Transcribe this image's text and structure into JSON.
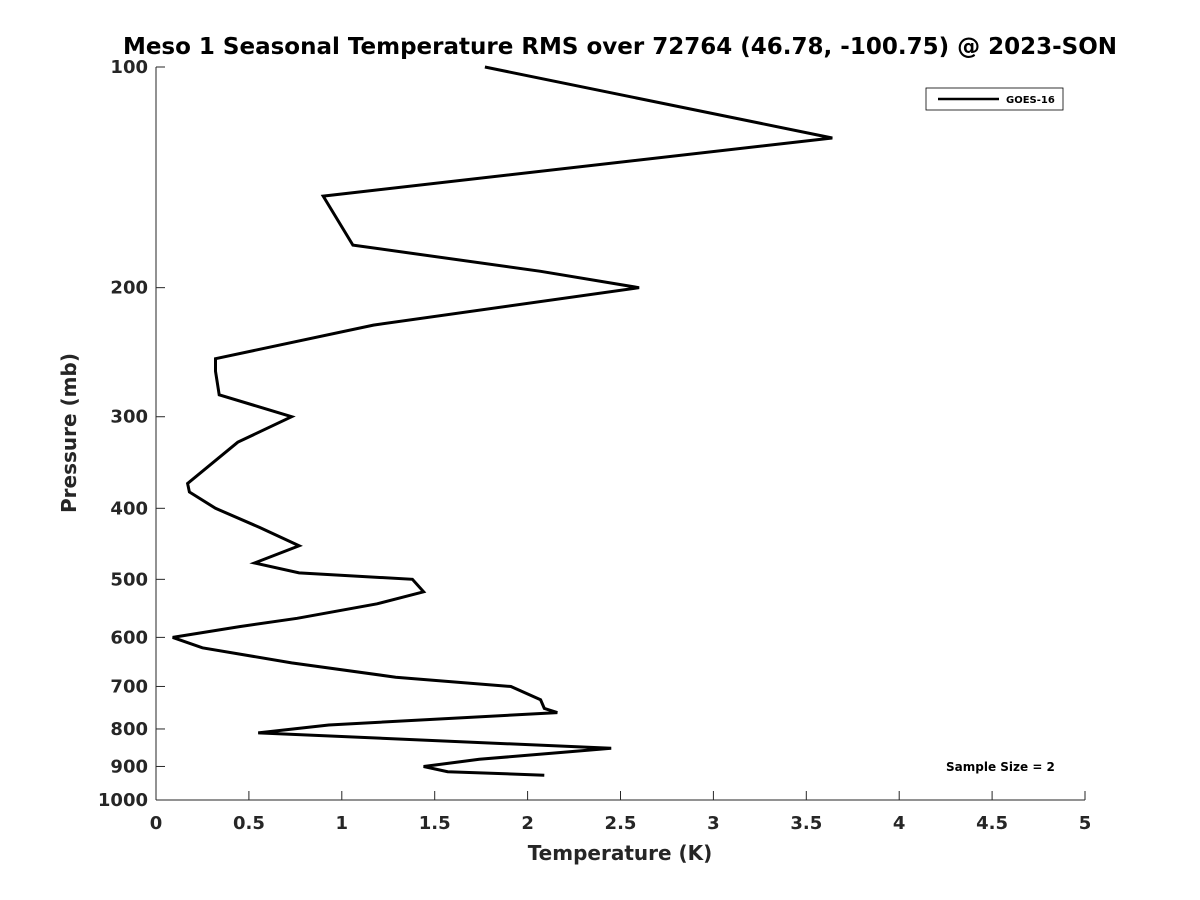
{
  "chart_data": {
    "type": "line",
    "title": "Meso 1 Seasonal Temperature RMS over 72764 (46.78, -100.75) @ 2023-SON",
    "xlabel": "Temperature (K)",
    "ylabel": "Pressure (mb)",
    "xlim": [
      0,
      5
    ],
    "ylim": [
      100,
      1000
    ],
    "y_scale": "log",
    "y_reversed": true,
    "x_ticks": [
      "0",
      "0.5",
      "1",
      "1.5",
      "2",
      "2.5",
      "3",
      "3.5",
      "4",
      "4.5",
      "5"
    ],
    "y_ticks": [
      "100",
      "200",
      "300",
      "400",
      "500",
      "600",
      "700",
      "800",
      "900",
      "1000"
    ],
    "grid": false,
    "legend_position": "top-right",
    "annotation": "Sample Size = 2",
    "series": [
      {
        "name": "GOES-16",
        "color": "#000000",
        "points": [
          {
            "x": 1.77,
            "y": 100
          },
          {
            "x": 3.64,
            "y": 125
          },
          {
            "x": 0.9,
            "y": 150
          },
          {
            "x": 1.06,
            "y": 175
          },
          {
            "x": 2.07,
            "y": 190
          },
          {
            "x": 2.6,
            "y": 200
          },
          {
            "x": 1.17,
            "y": 225
          },
          {
            "x": 0.32,
            "y": 250
          },
          {
            "x": 0.32,
            "y": 260
          },
          {
            "x": 0.34,
            "y": 280
          },
          {
            "x": 0.73,
            "y": 300
          },
          {
            "x": 0.44,
            "y": 325
          },
          {
            "x": 0.17,
            "y": 370
          },
          {
            "x": 0.18,
            "y": 380
          },
          {
            "x": 0.32,
            "y": 400
          },
          {
            "x": 0.56,
            "y": 425
          },
          {
            "x": 0.77,
            "y": 450
          },
          {
            "x": 0.53,
            "y": 475
          },
          {
            "x": 0.77,
            "y": 490
          },
          {
            "x": 1.38,
            "y": 500
          },
          {
            "x": 1.44,
            "y": 520
          },
          {
            "x": 1.19,
            "y": 540
          },
          {
            "x": 0.76,
            "y": 565
          },
          {
            "x": 0.45,
            "y": 580
          },
          {
            "x": 0.09,
            "y": 600
          },
          {
            "x": 0.25,
            "y": 620
          },
          {
            "x": 0.73,
            "y": 650
          },
          {
            "x": 1.29,
            "y": 680
          },
          {
            "x": 1.91,
            "y": 700
          },
          {
            "x": 2.07,
            "y": 730
          },
          {
            "x": 2.09,
            "y": 750
          },
          {
            "x": 2.16,
            "y": 760
          },
          {
            "x": 0.93,
            "y": 790
          },
          {
            "x": 0.55,
            "y": 810
          },
          {
            "x": 2.45,
            "y": 850
          },
          {
            "x": 2.21,
            "y": 860
          },
          {
            "x": 1.74,
            "y": 880
          },
          {
            "x": 1.44,
            "y": 900
          },
          {
            "x": 1.57,
            "y": 915
          },
          {
            "x": 2.09,
            "y": 925
          }
        ]
      }
    ]
  }
}
